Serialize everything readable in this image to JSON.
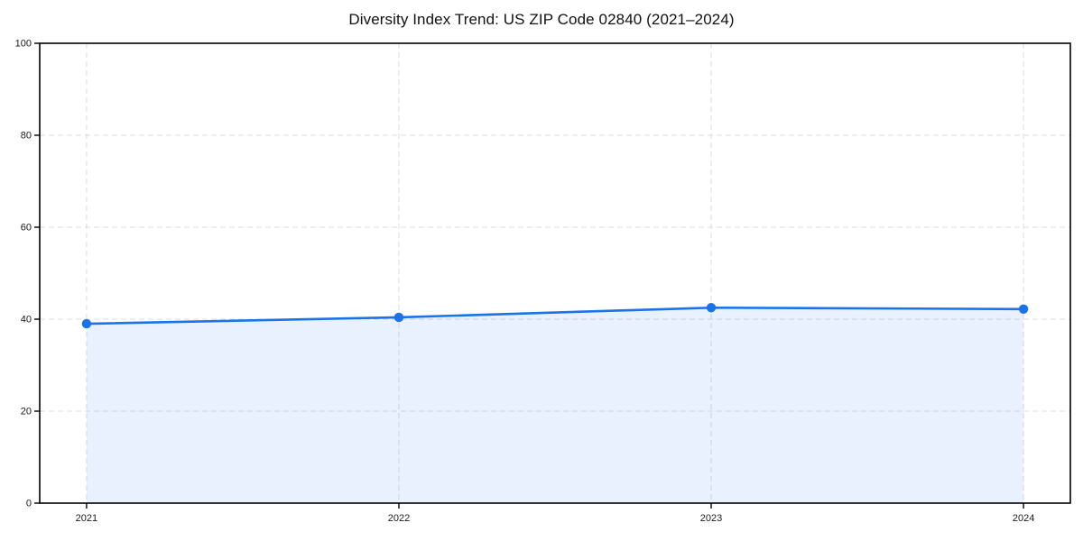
{
  "chart_data": {
    "type": "area",
    "title": "Diversity Index Trend: US ZIP Code 02840 (2021–2024)",
    "series_name": "Diversity Index",
    "categories": [
      "2021",
      "2022",
      "2023",
      "2024"
    ],
    "values": [
      39.0,
      40.4,
      42.5,
      42.2
    ],
    "xlabel": "",
    "ylabel": "",
    "ylim": [
      0,
      100
    ],
    "yticks": [
      0,
      20,
      40,
      60,
      80,
      100
    ],
    "grid": {
      "show": true,
      "style": "dashed",
      "both_axes": true
    },
    "legend_position": "none",
    "colors": {
      "line": "#1a73e8",
      "marker": "#1a73e8",
      "fill": "#1a73e8",
      "fill_opacity": 0.1,
      "grid": "#dcdcdc",
      "spine": "#000000",
      "tick_label": "#1a1a1a",
      "background": "#ffffff"
    }
  }
}
